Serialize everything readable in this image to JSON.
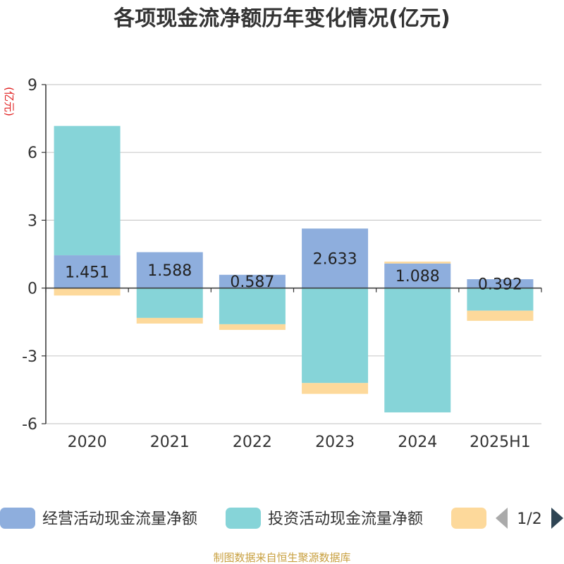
{
  "chart_data": {
    "type": "bar",
    "stacked": true,
    "title": "各项现金流净额历年变化情况(亿元)",
    "ylabel": "(亿元)",
    "xlabel": "",
    "ylim": [
      -6,
      9
    ],
    "yticks": [
      9,
      6,
      3,
      0,
      -3,
      -6
    ],
    "grid": true,
    "categories": [
      "2020",
      "2021",
      "2022",
      "2023",
      "2024",
      "2025H1"
    ],
    "series": [
      {
        "name": "经营活动现金流量净额",
        "color": "#8eaedd",
        "values": [
          1.451,
          1.588,
          0.587,
          2.633,
          1.088,
          0.392
        ],
        "labels": [
          "1.451",
          "1.588",
          "0.587",
          "2.633",
          "1.088",
          "0.392"
        ]
      },
      {
        "name": "投资活动现金流量净额",
        "color": "#86d4d8",
        "values": [
          5.72,
          -1.32,
          -1.6,
          -4.2,
          -5.5,
          -1.0
        ]
      },
      {
        "name": "",
        "color": "#fdd99b",
        "values": [
          -0.33,
          -0.25,
          -0.25,
          -0.48,
          0.08,
          -0.45
        ]
      }
    ],
    "legend_position": "bottom"
  },
  "legend": {
    "page_indicator": "1/2"
  },
  "source": "制图数据来自恒生聚源数据库"
}
